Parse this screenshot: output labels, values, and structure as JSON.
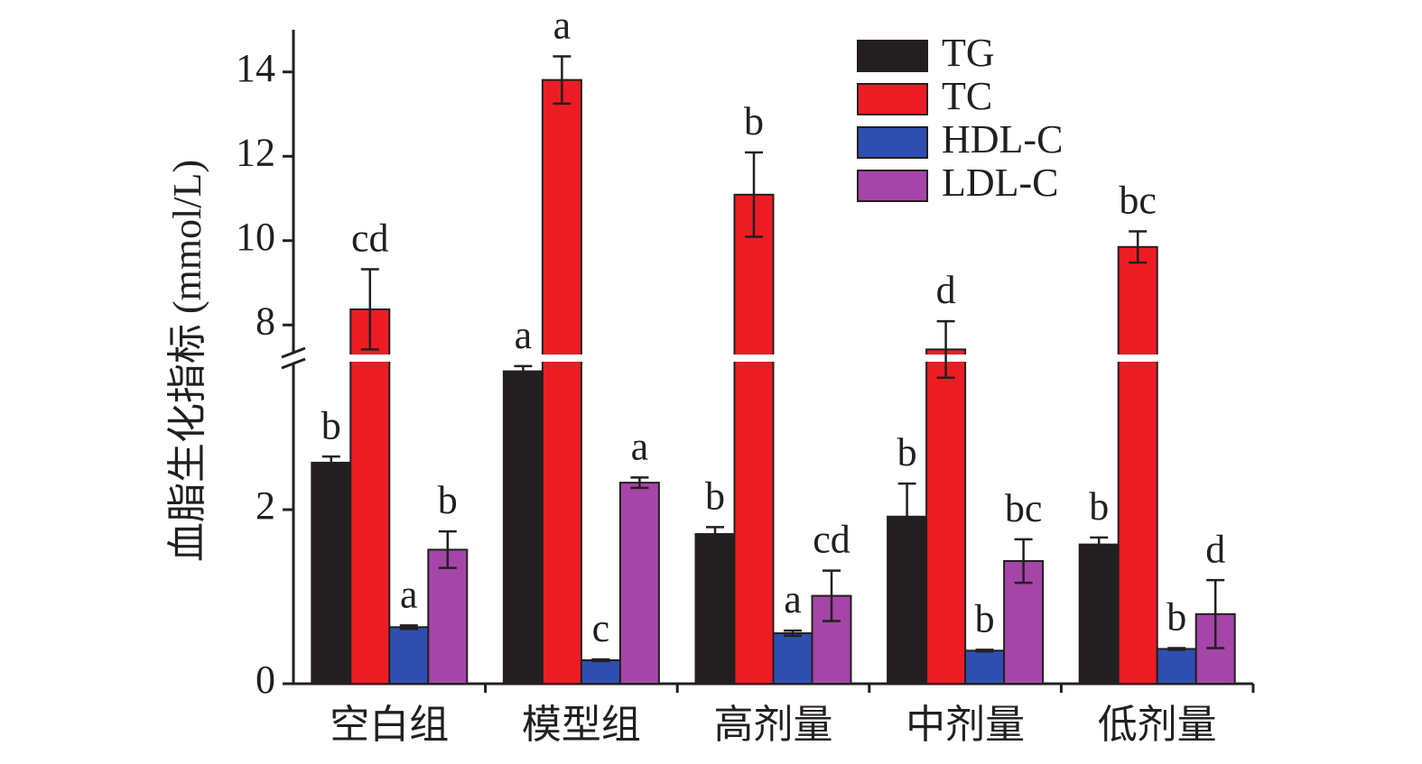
{
  "chart_data": {
    "type": "bar",
    "ylabel": "血脂生化指标 (mmol/L)",
    "categories": [
      "空白组",
      "模型组",
      "高剂量",
      "中剂量",
      "低剂量"
    ],
    "series": [
      {
        "name": "TG",
        "color": "#231f20",
        "values": [
          2.54,
          3.59,
          1.72,
          1.92,
          1.6
        ],
        "errors": [
          0.07,
          0.06,
          0.08,
          0.38,
          0.08
        ],
        "letters": [
          "b",
          "a",
          "b",
          "b",
          "b"
        ]
      },
      {
        "name": "TC",
        "color": "#ed1c24",
        "values": [
          8.37,
          13.81,
          11.09,
          7.42,
          9.85
        ],
        "errors": [
          0.95,
          0.56,
          1.0,
          0.67,
          0.37
        ],
        "letters": [
          "cd",
          "a",
          "b",
          "d",
          "bc"
        ]
      },
      {
        "name": "HDL-C",
        "color": "#2e4fb0",
        "values": [
          0.65,
          0.27,
          0.58,
          0.38,
          0.4
        ],
        "errors": [
          0.02,
          0.01,
          0.03,
          0.01,
          0.01
        ],
        "letters": [
          "a",
          "c",
          "a",
          "b",
          "b"
        ]
      },
      {
        "name": "LDL-C",
        "color": "#a545a8",
        "values": [
          1.54,
          2.31,
          1.01,
          1.41,
          0.8
        ],
        "errors": [
          0.21,
          0.06,
          0.29,
          0.25,
          0.39
        ],
        "letters": [
          "b",
          "a",
          "cd",
          "bc",
          "d"
        ]
      }
    ],
    "ylim": [
      0,
      3.7
    ],
    "yticks": [
      0,
      2
    ],
    "ylim_upper": [
      7.3,
      15
    ],
    "yticks_upper": [
      8,
      10,
      12,
      14
    ],
    "legend": "upper right"
  }
}
